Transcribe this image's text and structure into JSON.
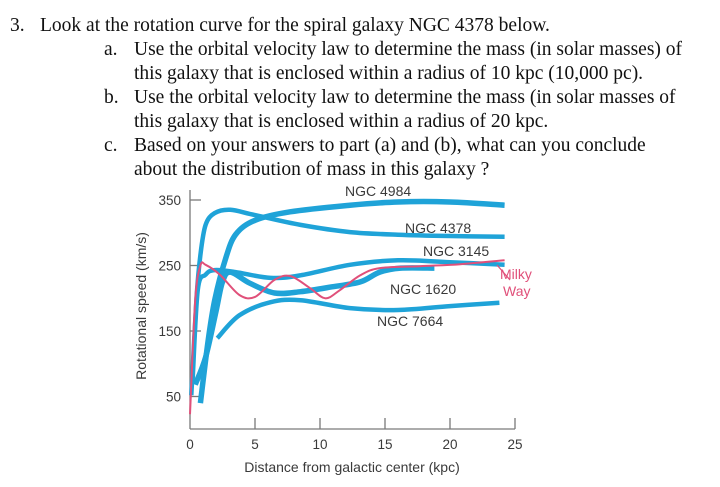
{
  "question": {
    "number": "3.",
    "stem": "Look at the rotation curve for the spiral galaxy NGC 4378 below.",
    "parts": [
      {
        "label": "a.",
        "lines": [
          "Use the orbital velocity law to determine the mass (in solar masses) of",
          "this galaxy that is enclosed within a radius of 10 kpc (10,000 pc)."
        ]
      },
      {
        "label": "b.",
        "lines": [
          "Use the orbital velocity law to determine the mass (in solar masses of",
          "this galaxy that is enclosed within a radius of 20 kpc."
        ]
      },
      {
        "label": "c.",
        "lines": [
          "Based on your answers to part (a) and (b), what can you conclude",
          "about the distribution of mass in this galaxy ?"
        ]
      }
    ]
  },
  "chart_data": {
    "type": "line",
    "title": "",
    "xlabel": "Distance from galactic center (kpc)",
    "ylabel": "Rotational speed (km/s)",
    "xlim": [
      0,
      25
    ],
    "ylim": [
      0,
      360
    ],
    "xticks": [
      0,
      5,
      10,
      15,
      20,
      25
    ],
    "yticks": [
      50,
      150,
      250,
      350
    ],
    "grid": false,
    "colors": {
      "galaxy": "#1fa3d8",
      "milky_way": "#e0507a",
      "axis": "#7a7a7a",
      "text": "#3a3a3a"
    },
    "series": [
      {
        "name": "NGC 4984",
        "color": "#1fa3d8",
        "x": [
          0.8,
          1.4,
          1.9,
          2.7,
          3.5,
          5.0,
          7.7,
          12.3,
          16,
          20,
          24.2
        ],
        "y": [
          40,
          136,
          197,
          258,
          297,
          319,
          332,
          342,
          347,
          347,
          342
        ]
      },
      {
        "name": "NGC 4378",
        "color": "#1fa3d8",
        "x": [
          0.1,
          0.5,
          0.8,
          1.2,
          1.9,
          3.1,
          5.0,
          8.5,
          12.3,
          16,
          20,
          24.2
        ],
        "y": [
          52,
          200,
          266,
          312,
          330,
          335,
          327,
          312,
          301,
          297,
          295,
          294
        ]
      },
      {
        "name": "NGC 3145",
        "color": "#1fa3d8",
        "x": [
          0.2,
          0.6,
          1.2,
          1.9,
          3.5,
          6.2,
          8.5,
          12.3,
          16,
          20,
          24.2
        ],
        "y": [
          75,
          213,
          236,
          243,
          240,
          231,
          235,
          251,
          258,
          255,
          251
        ]
      },
      {
        "name": "NGC 1620",
        "color": "#1fa3d8",
        "x": [
          0.4,
          1.2,
          2.0,
          2.5,
          3.1,
          4.6,
          6.5,
          8.5,
          10.8,
          13.1,
          14.6,
          16.2,
          18.8
        ],
        "y": [
          68,
          110,
          180,
          225,
          240,
          223,
          208,
          210,
          217,
          225,
          240,
          246,
          246
        ]
      },
      {
        "name": "NGC 7664",
        "color": "#1fa3d8",
        "x": [
          2.1,
          3.8,
          6.2,
          8.5,
          12.3,
          16,
          20,
          23.8
        ],
        "y": [
          139,
          174,
          194,
          197,
          185,
          182,
          188,
          193
        ]
      },
      {
        "name": "Milky Way",
        "color": "#e0507a",
        "x": [
          0,
          0.4,
          0.8,
          1.2,
          2.3,
          3.8,
          5.0,
          6.5,
          7.7,
          9.2,
          10.4,
          11.5,
          13.1,
          14.6,
          17.7,
          20.8,
          24.2
        ],
        "y": [
          23,
          197,
          250,
          251,
          236,
          205,
          202,
          228,
          234,
          216,
          200,
          212,
          235,
          246,
          249,
          252,
          258
        ]
      }
    ],
    "annotations": [
      {
        "text": "NGC 4984",
        "series": "NGC 4984"
      },
      {
        "text": "NGC 4378",
        "series": "NGC 4378"
      },
      {
        "text": "NGC 3145",
        "series": "NGC 3145"
      },
      {
        "text": "NGC 1620",
        "series": "NGC 1620"
      },
      {
        "text": "NGC 7664",
        "series": "NGC 7664"
      },
      {
        "text": "Milky",
        "text2": "Way",
        "series": "Milky Way"
      }
    ]
  }
}
